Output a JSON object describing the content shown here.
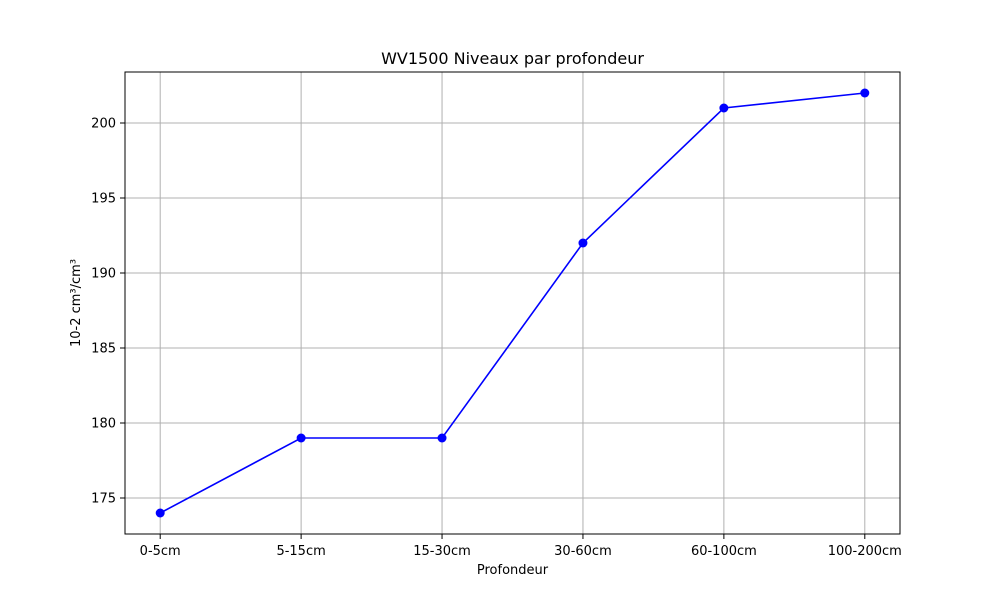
{
  "chart_data": {
    "type": "line",
    "title": "WV1500 Niveaux par profondeur",
    "xlabel": "Profondeur",
    "ylabel": "10-2 cm³/cm³",
    "categories": [
      "0-5cm",
      "5-15cm",
      "15-30cm",
      "30-60cm",
      "60-100cm",
      "100-200cm"
    ],
    "series": [
      {
        "values": [
          174,
          179,
          179,
          192,
          201,
          202
        ]
      }
    ],
    "ylim": [
      172.6,
      203.4
    ],
    "yticks": [
      175,
      180,
      185,
      190,
      195,
      200
    ],
    "grid": true,
    "line_color": "#0000ff",
    "marker": "circle"
  }
}
